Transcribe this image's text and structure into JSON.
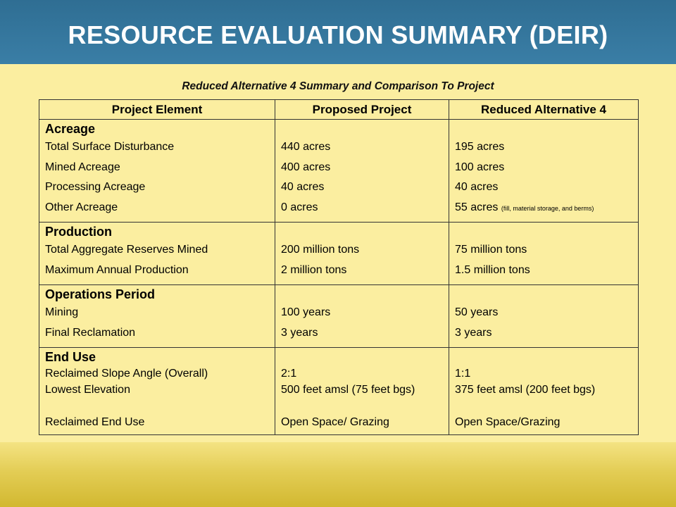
{
  "header": {
    "title": "RESOURCE EVALUATION SUMMARY (DEIR)"
  },
  "subtitle": "Reduced Alternative 4 Summary and Comparison To Project",
  "table": {
    "columns": [
      "Project Element",
      "Proposed Project",
      "Reduced Alternative 4"
    ],
    "sections": [
      {
        "title": "Acreage",
        "rows": [
          {
            "element": "Total Surface Disturbance",
            "proposed": "440 acres",
            "reduced": "195 acres"
          },
          {
            "element": "Mined Acreage",
            "proposed": "400 acres",
            "reduced": "100 acres"
          },
          {
            "element": "Processing Acreage",
            "proposed": "40 acres",
            "reduced": "40 acres"
          },
          {
            "element": "Other Acreage",
            "proposed": "0 acres",
            "reduced": "55 acres",
            "reduced_note": "(fill, material storage, and berms)"
          }
        ]
      },
      {
        "title": "Production",
        "rows": [
          {
            "element": "Total Aggregate Reserves Mined",
            "proposed": "200 million tons",
            "reduced": "75 million tons"
          },
          {
            "element": "Maximum Annual Production",
            "proposed": "2 million tons",
            "reduced": "1.5 million tons"
          }
        ]
      },
      {
        "title": "Operations Period",
        "rows": [
          {
            "element": "Mining",
            "proposed": "100 years",
            "reduced": "50 years"
          },
          {
            "element": "Final Reclamation",
            "proposed": "3 years",
            "reduced": "3 years"
          }
        ]
      },
      {
        "title": "End Use",
        "rows": [
          {
            "element": "Reclaimed Slope Angle (Overall)",
            "proposed": "2:1",
            "reduced": "1:1"
          },
          {
            "element": "Lowest Elevation",
            "proposed": "500 feet amsl (75 feet bgs)",
            "reduced": "375 feet amsl (200 feet bgs)"
          },
          {
            "element": "Reclaimed End Use",
            "proposed": "Open Space/ Grazing",
            "reduced": "Open Space/Grazing"
          }
        ]
      }
    ]
  }
}
